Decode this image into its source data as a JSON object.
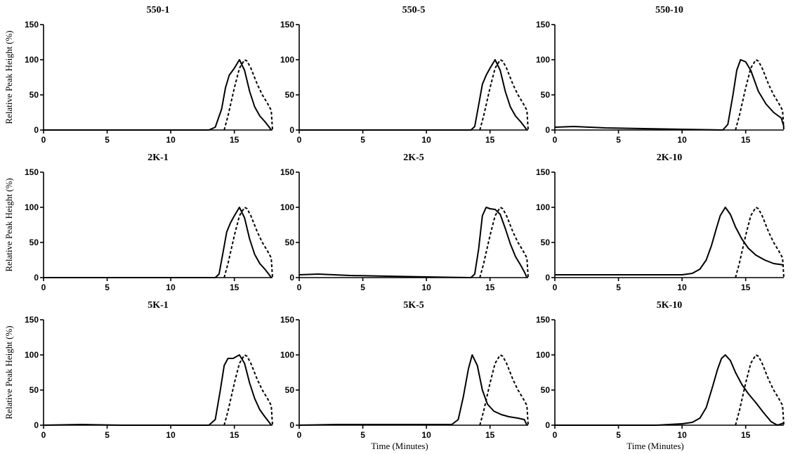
{
  "chart_data": [
    {
      "type": "line",
      "title": "550-1",
      "xlim": [
        0,
        18
      ],
      "ylim": [
        0,
        150
      ],
      "xticks": [
        0,
        5,
        10,
        15
      ],
      "yticks": [
        0,
        50,
        100,
        150
      ],
      "xlabel": "",
      "ylabel": "Relative Peak Height (%)",
      "series": [
        {
          "style": "solid",
          "x": [
            0,
            13.0,
            13.5,
            14.0,
            14.3,
            14.6,
            15.0,
            15.4,
            15.8,
            16.2,
            16.6,
            17.0,
            17.4,
            17.7,
            17.9
          ],
          "y": [
            0,
            0,
            4,
            30,
            60,
            78,
            88,
            100,
            85,
            55,
            33,
            20,
            12,
            5,
            0
          ]
        },
        {
          "style": "dashed",
          "x": [
            14.2,
            14.5,
            15.0,
            15.4,
            15.8,
            16.0,
            16.3,
            16.8,
            17.2,
            17.6,
            17.9,
            18.0
          ],
          "y": [
            0,
            20,
            60,
            88,
            100,
            98,
            88,
            65,
            50,
            38,
            28,
            0
          ]
        }
      ]
    },
    {
      "type": "line",
      "title": "550-5",
      "xlim": [
        0,
        18
      ],
      "ylim": [
        0,
        150
      ],
      "xticks": [
        0,
        5,
        10,
        15
      ],
      "yticks": [
        0,
        50,
        100,
        150
      ],
      "xlabel": "",
      "ylabel": "",
      "series": [
        {
          "style": "solid",
          "x": [
            0,
            13.5,
            13.8,
            14.1,
            14.4,
            14.7,
            15.0,
            15.4,
            15.8,
            16.2,
            16.6,
            17.0,
            17.4,
            17.7,
            17.9
          ],
          "y": [
            0,
            0,
            5,
            35,
            65,
            78,
            88,
            100,
            85,
            55,
            33,
            20,
            12,
            5,
            0
          ]
        },
        {
          "style": "dashed",
          "x": [
            14.2,
            14.5,
            15.0,
            15.4,
            15.8,
            16.0,
            16.3,
            16.8,
            17.2,
            17.6,
            17.9,
            18.0
          ],
          "y": [
            0,
            20,
            60,
            88,
            100,
            98,
            88,
            65,
            50,
            38,
            28,
            0
          ]
        }
      ]
    },
    {
      "type": "line",
      "title": "550-10",
      "xlim": [
        0,
        18
      ],
      "ylim": [
        0,
        150
      ],
      "xticks": [
        0,
        5,
        10,
        15
      ],
      "yticks": [
        0,
        50,
        100,
        150
      ],
      "xlabel": "",
      "ylabel": "",
      "series": [
        {
          "style": "solid",
          "x": [
            0,
            1.5,
            4,
            7,
            10,
            13.2,
            13.6,
            14.0,
            14.3,
            14.6,
            15.0,
            15.4,
            16.0,
            16.6,
            17.2,
            17.8,
            18.0
          ],
          "y": [
            4,
            5,
            3,
            2,
            1,
            0,
            8,
            50,
            85,
            100,
            97,
            85,
            55,
            37,
            25,
            17,
            5
          ]
        },
        {
          "style": "dashed",
          "x": [
            14.2,
            14.5,
            15.0,
            15.4,
            15.8,
            16.0,
            16.3,
            16.8,
            17.2,
            17.6,
            17.9,
            18.0
          ],
          "y": [
            0,
            20,
            60,
            88,
            100,
            98,
            88,
            65,
            50,
            38,
            28,
            0
          ]
        }
      ]
    },
    {
      "type": "line",
      "title": "2K-1",
      "xlim": [
        0,
        18
      ],
      "ylim": [
        0,
        150
      ],
      "xticks": [
        0,
        5,
        10,
        15
      ],
      "yticks": [
        0,
        50,
        100,
        150
      ],
      "xlabel": "",
      "ylabel": "Relative Peak Height (%)",
      "series": [
        {
          "style": "solid",
          "x": [
            0,
            13.5,
            13.8,
            14.1,
            14.4,
            14.7,
            15.0,
            15.4,
            15.8,
            16.2,
            16.6,
            17.0,
            17.4,
            17.7,
            17.9
          ],
          "y": [
            0,
            0,
            5,
            35,
            65,
            78,
            88,
            100,
            85,
            55,
            33,
            20,
            12,
            5,
            0
          ]
        },
        {
          "style": "dashed",
          "x": [
            14.2,
            14.5,
            15.0,
            15.4,
            15.8,
            16.0,
            16.3,
            16.8,
            17.2,
            17.6,
            17.9,
            18.0
          ],
          "y": [
            0,
            20,
            60,
            88,
            100,
            98,
            88,
            65,
            50,
            38,
            28,
            0
          ]
        }
      ]
    },
    {
      "type": "line",
      "title": "2K-5",
      "xlim": [
        0,
        18
      ],
      "ylim": [
        0,
        150
      ],
      "xticks": [
        0,
        5,
        10,
        15
      ],
      "yticks": [
        0,
        50,
        100,
        150
      ],
      "xlabel": "",
      "ylabel": "",
      "series": [
        {
          "style": "solid",
          "x": [
            0,
            1.5,
            4,
            7,
            10,
            13.5,
            13.8,
            14.1,
            14.4,
            14.7,
            15.0,
            15.4,
            15.8,
            16.2,
            16.6,
            17.0,
            17.4,
            17.7,
            17.9
          ],
          "y": [
            4,
            5,
            3,
            2,
            1,
            0,
            5,
            40,
            88,
            100,
            98,
            97,
            90,
            70,
            48,
            30,
            18,
            8,
            0
          ]
        },
        {
          "style": "dashed",
          "x": [
            14.2,
            14.5,
            15.0,
            15.4,
            15.8,
            16.0,
            16.3,
            16.8,
            17.2,
            17.6,
            17.9,
            18.0
          ],
          "y": [
            0,
            20,
            60,
            88,
            100,
            98,
            88,
            65,
            50,
            38,
            28,
            0
          ]
        }
      ]
    },
    {
      "type": "line",
      "title": "2K-10",
      "xlim": [
        0,
        18
      ],
      "ylim": [
        0,
        150
      ],
      "xticks": [
        0,
        5,
        10,
        15
      ],
      "yticks": [
        0,
        50,
        100,
        150
      ],
      "xlabel": "",
      "ylabel": "",
      "series": [
        {
          "style": "solid",
          "x": [
            0,
            10.0,
            10.8,
            11.4,
            11.9,
            12.3,
            12.7,
            13.0,
            13.4,
            13.8,
            14.2,
            14.7,
            15.2,
            15.8,
            16.5,
            17.2,
            18.0
          ],
          "y": [
            4,
            4,
            6,
            12,
            25,
            45,
            70,
            88,
            100,
            90,
            72,
            55,
            42,
            32,
            25,
            20,
            18
          ]
        },
        {
          "style": "dashed",
          "x": [
            14.2,
            14.5,
            15.0,
            15.4,
            15.8,
            16.0,
            16.3,
            16.8,
            17.2,
            17.6,
            17.9,
            18.0
          ],
          "y": [
            0,
            20,
            60,
            88,
            100,
            98,
            88,
            65,
            50,
            38,
            28,
            0
          ]
        }
      ]
    },
    {
      "type": "line",
      "title": "5K-1",
      "xlim": [
        0,
        18
      ],
      "ylim": [
        0,
        150
      ],
      "xticks": [
        0,
        5,
        10,
        15
      ],
      "yticks": [
        0,
        50,
        100,
        150
      ],
      "xlabel": "",
      "ylabel": "Relative Peak Height (%)",
      "series": [
        {
          "style": "solid",
          "x": [
            0,
            3,
            6,
            13.0,
            13.5,
            13.9,
            14.2,
            14.5,
            14.9,
            15.4,
            15.8,
            16.2,
            16.6,
            17.0,
            17.4,
            17.7,
            17.9
          ],
          "y": [
            0,
            1,
            0,
            0,
            8,
            50,
            85,
            95,
            95,
            100,
            88,
            60,
            38,
            22,
            12,
            5,
            0
          ]
        },
        {
          "style": "dashed",
          "x": [
            14.2,
            14.5,
            15.0,
            15.4,
            15.8,
            16.0,
            16.3,
            16.8,
            17.2,
            17.6,
            17.9,
            18.0
          ],
          "y": [
            0,
            20,
            60,
            88,
            100,
            98,
            88,
            65,
            50,
            38,
            28,
            0
          ]
        }
      ]
    },
    {
      "type": "line",
      "title": "5K-5",
      "xlim": [
        0,
        18
      ],
      "ylim": [
        0,
        150
      ],
      "xticks": [
        0,
        5,
        10,
        15
      ],
      "yticks": [
        0,
        50,
        100,
        150
      ],
      "xlabel": "Time (Minutes)",
      "ylabel": "",
      "series": [
        {
          "style": "solid",
          "x": [
            0,
            3,
            12.0,
            12.5,
            12.9,
            13.3,
            13.6,
            14.0,
            14.4,
            14.8,
            15.3,
            15.9,
            16.5,
            17.2,
            17.7,
            17.9
          ],
          "y": [
            0,
            1,
            1,
            8,
            40,
            80,
            100,
            85,
            50,
            30,
            20,
            15,
            12,
            10,
            8,
            0
          ]
        },
        {
          "style": "dashed",
          "x": [
            14.2,
            14.5,
            15.0,
            15.4,
            15.8,
            16.0,
            16.3,
            16.8,
            17.2,
            17.6,
            17.9,
            18.0
          ],
          "y": [
            0,
            20,
            60,
            88,
            100,
            98,
            88,
            65,
            50,
            38,
            28,
            0
          ]
        }
      ]
    },
    {
      "type": "line",
      "title": "5K-10",
      "xlim": [
        0,
        18
      ],
      "ylim": [
        0,
        150
      ],
      "xticks": [
        0,
        5,
        10,
        15
      ],
      "yticks": [
        0,
        50,
        100,
        150
      ],
      "xlabel": "Time (Minutes)",
      "ylabel": "",
      "series": [
        {
          "style": "solid",
          "x": [
            0,
            8,
            9,
            10,
            10.8,
            11.4,
            11.9,
            12.4,
            12.8,
            13.1,
            13.4,
            13.8,
            14.2,
            14.7,
            15.2,
            15.8,
            16.4,
            17.0,
            17.5,
            18.0
          ],
          "y": [
            0,
            0,
            1,
            2,
            4,
            10,
            25,
            55,
            80,
            95,
            100,
            92,
            75,
            58,
            45,
            32,
            18,
            5,
            0,
            3
          ]
        },
        {
          "style": "dashed",
          "x": [
            14.2,
            14.5,
            15.0,
            15.4,
            15.8,
            16.0,
            16.3,
            16.8,
            17.2,
            17.6,
            17.9,
            18.0
          ],
          "y": [
            0,
            20,
            60,
            88,
            100,
            98,
            88,
            65,
            50,
            38,
            28,
            0
          ]
        }
      ]
    }
  ]
}
